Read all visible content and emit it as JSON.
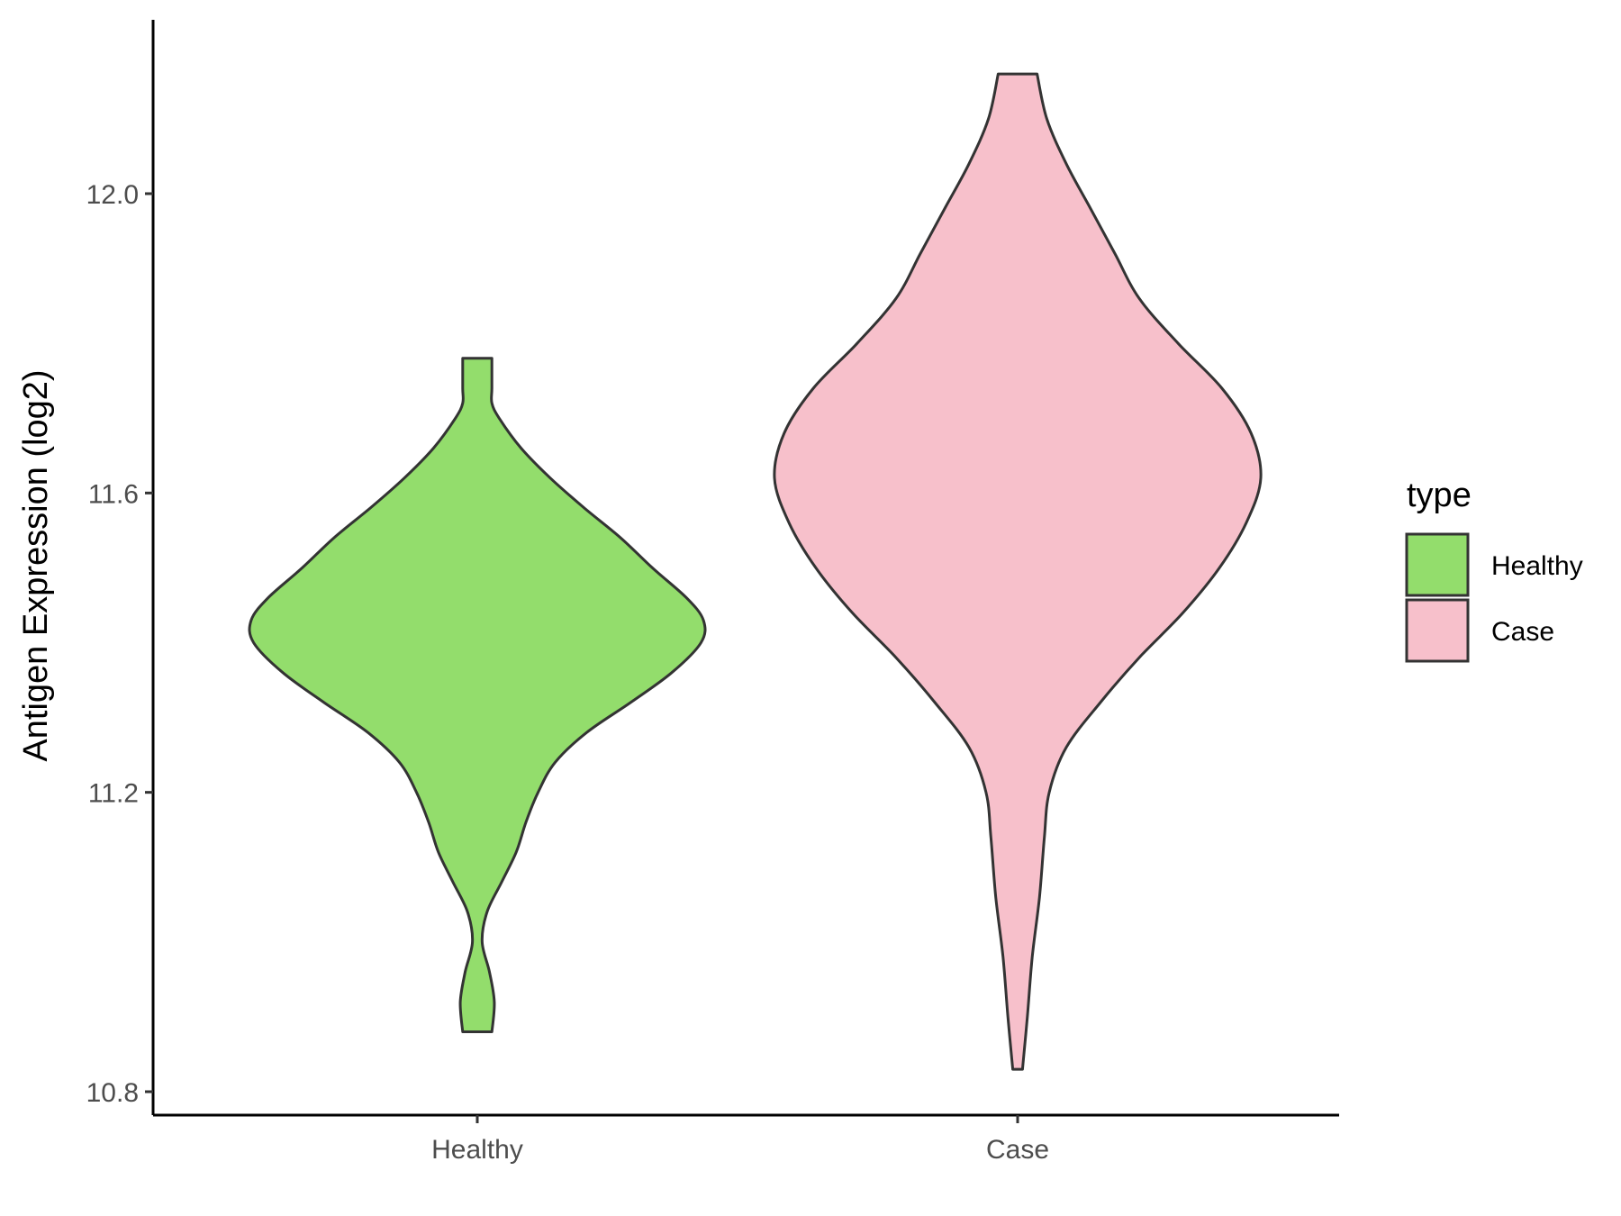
{
  "chart_data": {
    "type": "violin",
    "title": "",
    "xlabel": "",
    "ylabel": "Antigen Expression (log2)",
    "ylim": [
      10.77,
      12.23
    ],
    "y_ticks": [
      "10.8",
      "11.2",
      "11.6",
      "12.0"
    ],
    "categories": [
      "Healthy",
      "Case"
    ],
    "grid": false,
    "legend": {
      "title": "type",
      "placement": "right",
      "entries": [
        {
          "label": "Healthy",
          "color": "#93DD6C"
        },
        {
          "label": "Case",
          "color": "#F7C0CB"
        }
      ]
    },
    "series": [
      {
        "category": "Healthy",
        "color": "#93DD6C",
        "min": 10.88,
        "max": 11.78,
        "density_profile": [
          [
            10.88,
            0.06
          ],
          [
            10.92,
            0.07
          ],
          [
            10.96,
            0.05
          ],
          [
            11.0,
            0.02
          ],
          [
            11.04,
            0.04
          ],
          [
            11.08,
            0.1
          ],
          [
            11.12,
            0.16
          ],
          [
            11.16,
            0.2
          ],
          [
            11.2,
            0.25
          ],
          [
            11.24,
            0.32
          ],
          [
            11.28,
            0.45
          ],
          [
            11.32,
            0.63
          ],
          [
            11.36,
            0.8
          ],
          [
            11.4,
            0.92
          ],
          [
            11.43,
            0.93
          ],
          [
            11.46,
            0.86
          ],
          [
            11.5,
            0.72
          ],
          [
            11.54,
            0.59
          ],
          [
            11.58,
            0.44
          ],
          [
            11.62,
            0.3
          ],
          [
            11.66,
            0.18
          ],
          [
            11.7,
            0.09
          ],
          [
            11.72,
            0.06
          ],
          [
            11.74,
            0.06
          ],
          [
            11.78,
            0.06
          ]
        ]
      },
      {
        "category": "Case",
        "color": "#F7C0CB",
        "min": 10.83,
        "max": 12.16,
        "density_profile": [
          [
            10.83,
            0.02
          ],
          [
            10.9,
            0.04
          ],
          [
            10.98,
            0.06
          ],
          [
            11.06,
            0.09
          ],
          [
            11.14,
            0.11
          ],
          [
            11.2,
            0.13
          ],
          [
            11.26,
            0.2
          ],
          [
            11.32,
            0.34
          ],
          [
            11.38,
            0.5
          ],
          [
            11.44,
            0.68
          ],
          [
            11.5,
            0.83
          ],
          [
            11.56,
            0.94
          ],
          [
            11.62,
            1.0
          ],
          [
            11.68,
            0.96
          ],
          [
            11.74,
            0.84
          ],
          [
            11.8,
            0.66
          ],
          [
            11.86,
            0.5
          ],
          [
            11.92,
            0.4
          ],
          [
            11.98,
            0.3
          ],
          [
            12.04,
            0.2
          ],
          [
            12.1,
            0.12
          ],
          [
            12.16,
            0.08
          ]
        ]
      }
    ]
  }
}
